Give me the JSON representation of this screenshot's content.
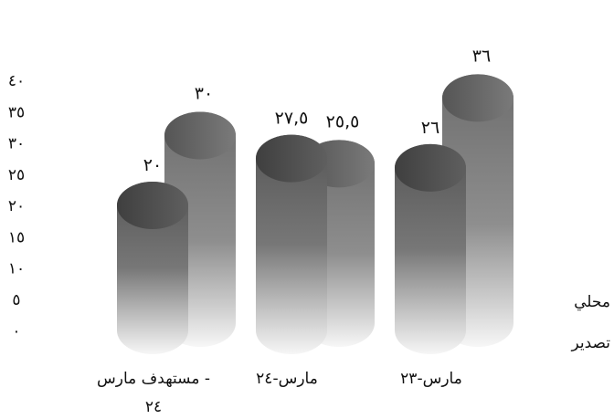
{
  "chart_data": {
    "type": "bar",
    "direction": "rtl",
    "categories": [
      "مارس-٢٣",
      "مارس-٢٤",
      "مستهدف مارس - ٢٤"
    ],
    "category_lines": [
      [
        "مارس-٢٣"
      ],
      [
        "مارس-٢٤"
      ],
      [
        "مستهدف مارس -",
        "٢٤"
      ]
    ],
    "series": [
      {
        "name": "محلي",
        "values": [
          26,
          27.5,
          20
        ],
        "labels": [
          "٢٦",
          "٢٧,٥",
          "٢٠"
        ],
        "color": "#555555"
      },
      {
        "name": "تصدير",
        "values": [
          36,
          25.5,
          30
        ],
        "labels": [
          "٣٦",
          "٢٥,٥",
          "٣٠"
        ],
        "color": "#6a6a6a"
      }
    ],
    "ylim": [
      0,
      40
    ],
    "yticks": [
      0,
      5,
      10,
      15,
      20,
      25,
      30,
      35,
      40
    ],
    "ytick_labels": [
      "٠",
      "٥",
      "١٠",
      "١٥",
      "٢٠",
      "٢٥",
      "٣٠",
      "٣٥",
      "٤٠"
    ],
    "grid": false,
    "legend_position": "right",
    "title": "",
    "xlabel": "",
    "ylabel": ""
  }
}
